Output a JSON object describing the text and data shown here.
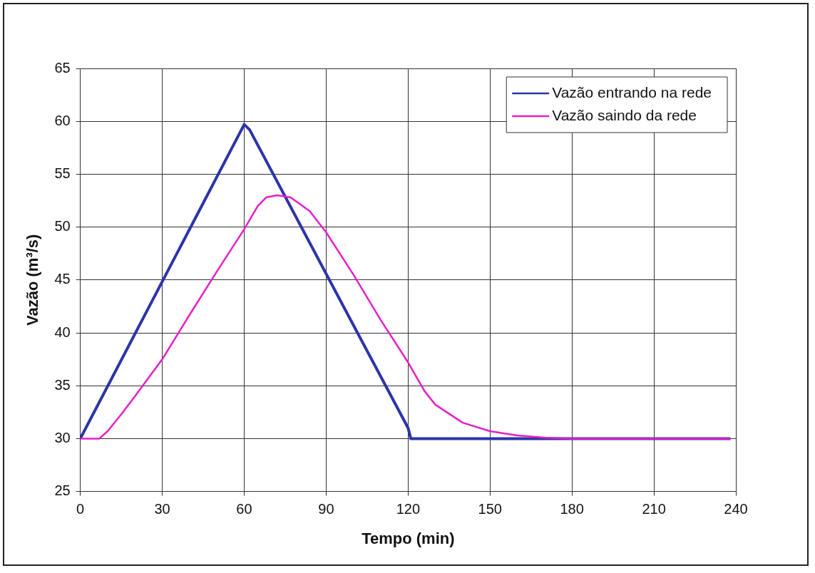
{
  "chart_data": {
    "type": "line",
    "xlabel": "Tempo (min)",
    "ylabel": "Vazão (m³/s)",
    "xlim": [
      0,
      240
    ],
    "xticks": [
      0,
      30,
      60,
      90,
      120,
      150,
      180,
      210,
      240
    ],
    "ylim": [
      25,
      65
    ],
    "yticks": [
      25,
      30,
      35,
      40,
      45,
      50,
      55,
      60,
      65
    ],
    "grid": true,
    "legend": "top right",
    "marker": "none",
    "line_style": "solid",
    "series": [
      {
        "name": "Vazão entrando na rede",
        "color": "#2b35a8",
        "x": [
          0,
          60,
          62,
          120,
          121,
          130,
          238
        ],
        "values": [
          30,
          59.7,
          59.2,
          31,
          30,
          30,
          30
        ]
      },
      {
        "name": "Vazão saindo da rede",
        "color": "#e61fc8",
        "x": [
          0,
          7,
          10,
          15,
          20,
          30,
          40,
          50,
          60,
          65,
          68,
          72,
          77,
          84,
          90,
          100,
          110,
          120,
          126,
          130,
          140,
          150,
          160,
          170,
          180,
          238
        ],
        "values": [
          30,
          30,
          30.7,
          32.3,
          34,
          37.5,
          41.7,
          45.8,
          49.8,
          52,
          52.8,
          53,
          52.8,
          51.5,
          49.5,
          45.5,
          41.2,
          37.2,
          34.5,
          33.2,
          31.5,
          30.7,
          30.3,
          30.1,
          30,
          30
        ]
      }
    ]
  }
}
